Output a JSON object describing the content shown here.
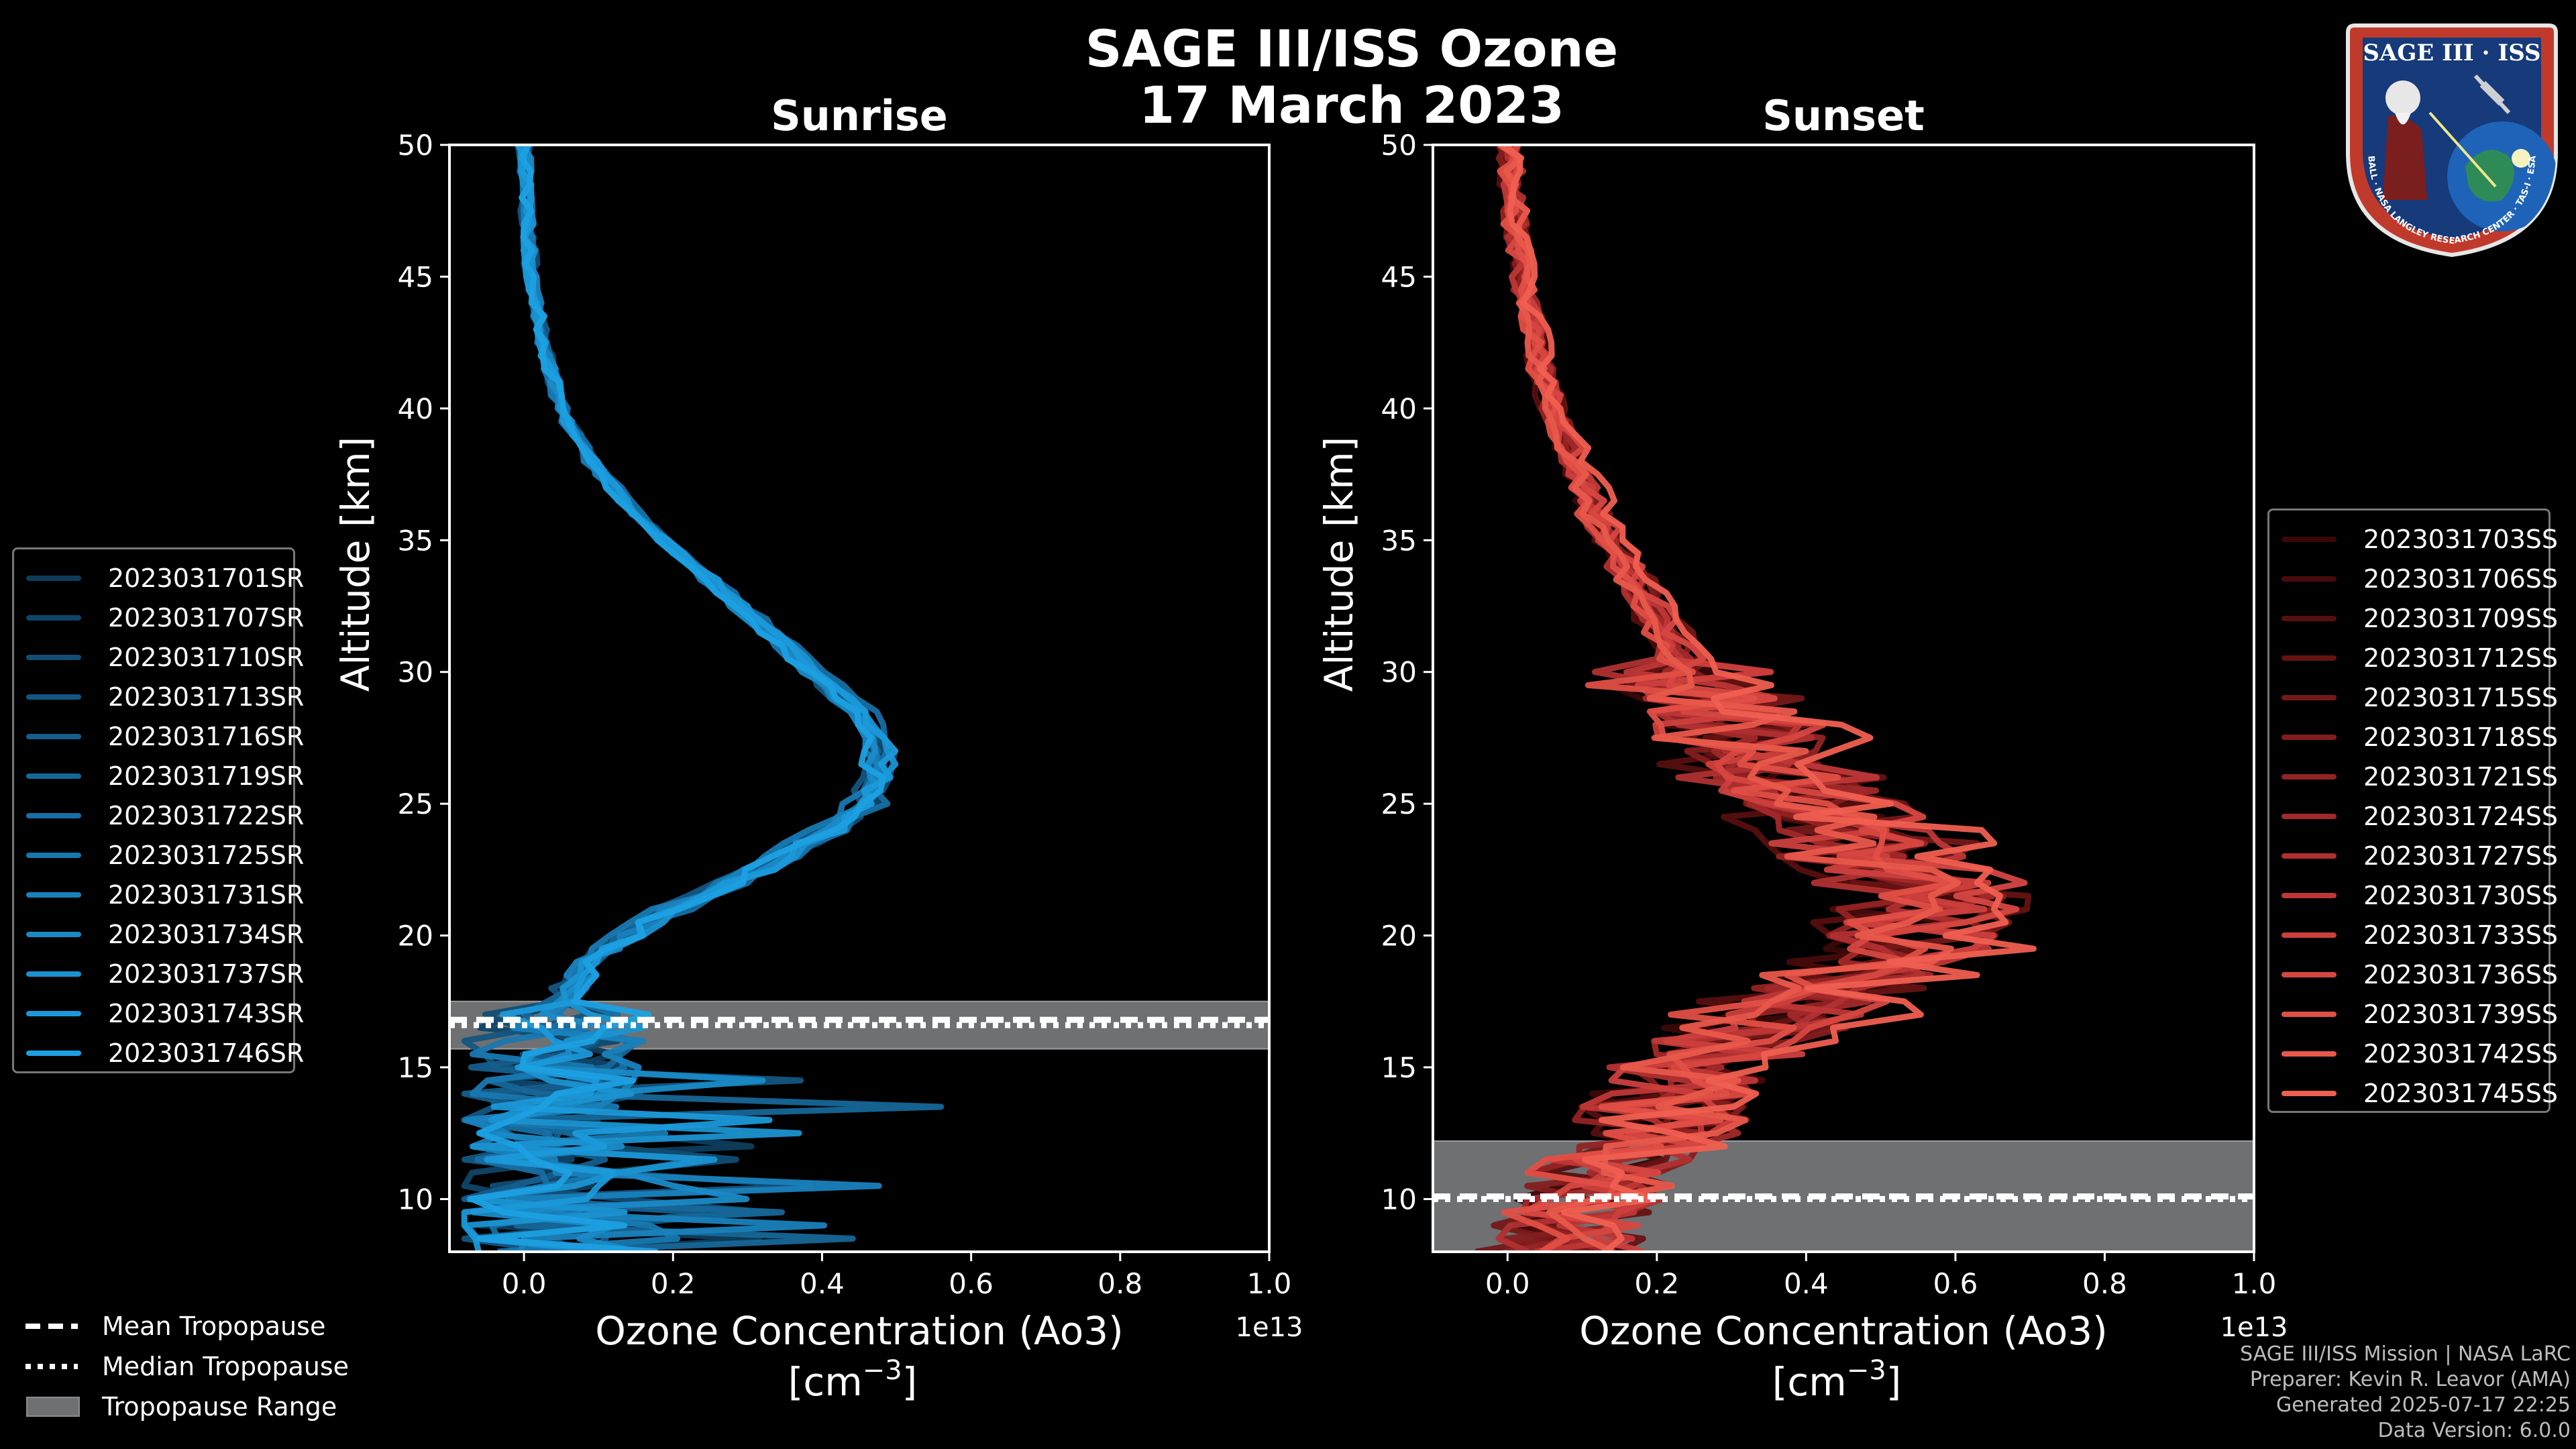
{
  "title_line1": "SAGE III/ISS Ozone",
  "title_line2": "17 March 2023",
  "chart_data": [
    {
      "type": "line",
      "title": "Sunrise",
      "xlabel_line1": "Ozone Concentration (Ao3)",
      "xlabel_line2": "[cm",
      "xlabel_exp": "−3",
      "xlabel_close": "]",
      "ylabel": "Altitude [km]",
      "x_offset_label": "1e13",
      "xlim": [
        -0.1,
        1.0
      ],
      "ylim": [
        8,
        50
      ],
      "xticks": [
        0.0,
        0.2,
        0.4,
        0.6,
        0.8,
        1.0
      ],
      "xtick_labels": [
        "0.0",
        "0.2",
        "0.4",
        "0.6",
        "0.8",
        "1.0"
      ],
      "yticks": [
        10,
        15,
        20,
        25,
        30,
        35,
        40,
        45,
        50
      ],
      "ytick_labels": [
        "10",
        "15",
        "20",
        "25",
        "30",
        "35",
        "40",
        "45",
        "50"
      ],
      "tropopause": {
        "min": 15.7,
        "max": 17.5,
        "mean": 16.8,
        "median": 16.6
      },
      "series": [
        {
          "name": "2023031701SR",
          "color": "#0d3d5c"
        },
        {
          "name": "2023031707SR",
          "color": "#0f4568"
        },
        {
          "name": "2023031710SR",
          "color": "#114d74"
        },
        {
          "name": "2023031713SR",
          "color": "#135580"
        },
        {
          "name": "2023031716SR",
          "color": "#155e8c"
        },
        {
          "name": "2023031719SR",
          "color": "#166698"
        },
        {
          "name": "2023031722SR",
          "color": "#176fa4"
        },
        {
          "name": "2023031725SR",
          "color": "#1878b0"
        },
        {
          "name": "2023031731SR",
          "color": "#1981bc"
        },
        {
          "name": "2023031734SR",
          "color": "#1a8ac6"
        },
        {
          "name": "2023031737SR",
          "color": "#1a92d0"
        },
        {
          "name": "2023031743SR",
          "color": "#1b99d9"
        },
        {
          "name": "2023031746SR",
          "color": "#1ca0e2"
        }
      ],
      "base_profile": [
        {
          "alt": 50,
          "o3": 0.0
        },
        {
          "alt": 47,
          "o3": 0.005
        },
        {
          "alt": 45,
          "o3": 0.01
        },
        {
          "alt": 42,
          "o3": 0.03
        },
        {
          "alt": 40,
          "o3": 0.05
        },
        {
          "alt": 38,
          "o3": 0.09
        },
        {
          "alt": 36,
          "o3": 0.15
        },
        {
          "alt": 34,
          "o3": 0.23
        },
        {
          "alt": 32,
          "o3": 0.31
        },
        {
          "alt": 30,
          "o3": 0.39
        },
        {
          "alt": 28.5,
          "o3": 0.45
        },
        {
          "alt": 27,
          "o3": 0.48
        },
        {
          "alt": 26,
          "o3": 0.48
        },
        {
          "alt": 25,
          "o3": 0.46
        },
        {
          "alt": 24,
          "o3": 0.41
        },
        {
          "alt": 23,
          "o3": 0.35
        },
        {
          "alt": 22,
          "o3": 0.28
        },
        {
          "alt": 21,
          "o3": 0.2
        },
        {
          "alt": 20,
          "o3": 0.14
        },
        {
          "alt": 19,
          "o3": 0.09
        },
        {
          "alt": 18,
          "o3": 0.06
        },
        {
          "alt": 17,
          "o3": 0.05
        },
        {
          "alt": 16,
          "o3": 0.04
        },
        {
          "alt": 15,
          "o3": 0.04
        },
        {
          "alt": 14,
          "o3": 0.03
        },
        {
          "alt": 12,
          "o3": 0.03
        },
        {
          "alt": 10,
          "o3": 0.02
        },
        {
          "alt": 8,
          "o3": 0.02
        }
      ]
    },
    {
      "type": "line",
      "title": "Sunset",
      "xlabel_line1": "Ozone Concentration (Ao3)",
      "xlabel_line2": "[cm",
      "xlabel_exp": "−3",
      "xlabel_close": "]",
      "ylabel": "Altitude [km]",
      "x_offset_label": "1e13",
      "xlim": [
        -0.1,
        1.0
      ],
      "ylim": [
        8,
        50
      ],
      "xticks": [
        0.0,
        0.2,
        0.4,
        0.6,
        0.8,
        1.0
      ],
      "xtick_labels": [
        "0.0",
        "0.2",
        "0.4",
        "0.6",
        "0.8",
        "1.0"
      ],
      "yticks": [
        10,
        15,
        20,
        25,
        30,
        35,
        40,
        45,
        50
      ],
      "ytick_labels": [
        "10",
        "15",
        "20",
        "25",
        "30",
        "35",
        "40",
        "45",
        "50"
      ],
      "tropopause": {
        "min": 8,
        "max": 12.2,
        "mean": 10.1,
        "median": 10.0
      },
      "series": [
        {
          "name": "2023031703SS",
          "color": "#3a0808"
        },
        {
          "name": "2023031706SS",
          "color": "#470b0b"
        },
        {
          "name": "2023031709SS",
          "color": "#560f0f"
        },
        {
          "name": "2023031712SS",
          "color": "#651313"
        },
        {
          "name": "2023031715SS",
          "color": "#741818"
        },
        {
          "name": "2023031718SS",
          "color": "#831d1d"
        },
        {
          "name": "2023031721SS",
          "color": "#932323"
        },
        {
          "name": "2023031724SS",
          "color": "#a2292a"
        },
        {
          "name": "2023031727SS",
          "color": "#b03030"
        },
        {
          "name": "2023031730SS",
          "color": "#be3737"
        },
        {
          "name": "2023031733SS",
          "color": "#cb3f3d"
        },
        {
          "name": "2023031736SS",
          "color": "#d64741"
        },
        {
          "name": "2023031739SS",
          "color": "#e04f46"
        },
        {
          "name": "2023031742SS",
          "color": "#e8584b"
        },
        {
          "name": "2023031745SS",
          "color": "#ef5f50"
        }
      ],
      "base_profile": [
        {
          "alt": 50,
          "o3": 0.0
        },
        {
          "alt": 47,
          "o3": 0.01
        },
        {
          "alt": 45,
          "o3": 0.02
        },
        {
          "alt": 42,
          "o3": 0.04
        },
        {
          "alt": 40,
          "o3": 0.06
        },
        {
          "alt": 38,
          "o3": 0.09
        },
        {
          "alt": 36,
          "o3": 0.12
        },
        {
          "alt": 34,
          "o3": 0.16
        },
        {
          "alt": 32,
          "o3": 0.2
        },
        {
          "alt": 30,
          "o3": 0.25
        },
        {
          "alt": 28,
          "o3": 0.3
        },
        {
          "alt": 26,
          "o3": 0.37
        },
        {
          "alt": 24,
          "o3": 0.45
        },
        {
          "alt": 22,
          "o3": 0.55
        },
        {
          "alt": 21,
          "o3": 0.58
        },
        {
          "alt": 20,
          "o3": 0.56
        },
        {
          "alt": 19,
          "o3": 0.5
        },
        {
          "alt": 18,
          "o3": 0.44
        },
        {
          "alt": 17,
          "o3": 0.38
        },
        {
          "alt": 16,
          "o3": 0.3
        },
        {
          "alt": 15,
          "o3": 0.25
        },
        {
          "alt": 14,
          "o3": 0.22
        },
        {
          "alt": 13,
          "o3": 0.2
        },
        {
          "alt": 12,
          "o3": 0.17
        },
        {
          "alt": 11,
          "o3": 0.13
        },
        {
          "alt": 10,
          "o3": 0.1
        },
        {
          "alt": 9,
          "o3": 0.08
        },
        {
          "alt": 8,
          "o3": 0.07
        }
      ]
    }
  ],
  "bottom_legend": {
    "mean": "Mean Tropopause",
    "median": "Median Tropopause",
    "range": "Tropopause Range"
  },
  "credits": {
    "line1": "SAGE III/ISS Mission | NASA LaRC",
    "line2": "Preparer: Kevin R. Leavor (AMA)",
    "line3": "Generated 2025-07-17 22:25",
    "line4": "Data Version: 6.0.0"
  },
  "logo": {
    "title": "SAGE III · ISS",
    "ring_text": "BALL · NASA LANGLEY RESEARCH CENTER · TAS-I · ESA"
  },
  "colors": {
    "axis": "#ffffff",
    "trop_fill": "#6e7072"
  }
}
